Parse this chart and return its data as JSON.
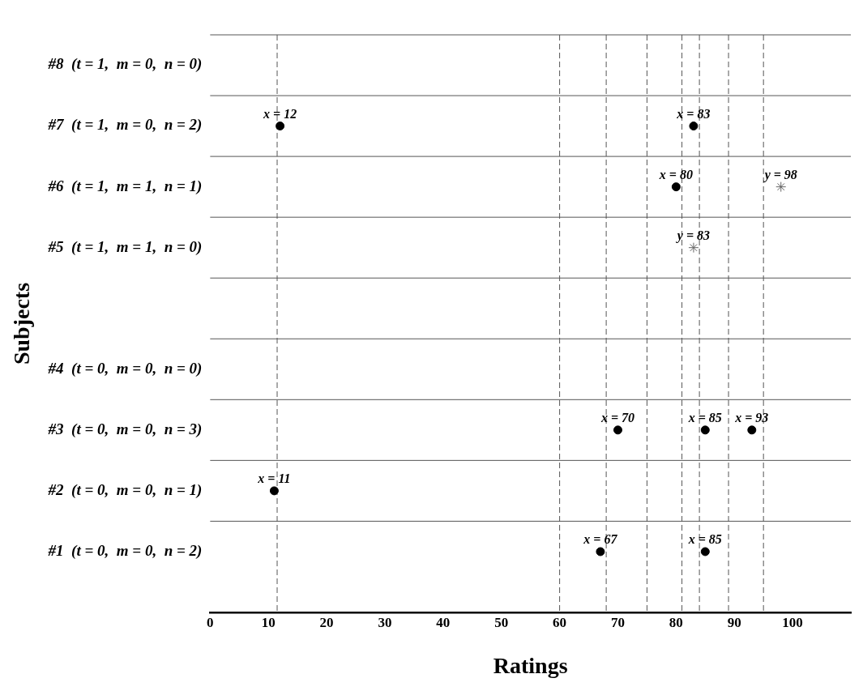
{
  "chart_data": {
    "type": "scatter",
    "orientation": "horizontal",
    "xlabel": "Ratings",
    "ylabel": "Subjects",
    "categories": [
      "#8  (t = 1,  m = 0,  n = 0)",
      "#7  (t = 1,  m = 0,  n = 2)",
      "#6  (t = 1,  m = 1,  n = 1)",
      "#5  (t = 1,  m = 1,  n = 0)",
      null,
      "#4  (t = 0,  m = 0,  n = 0)",
      "#3  (t = 0,  m = 0,  n = 3)",
      "#2  (t = 0,  m = 0,  n = 1)",
      "#1  (t = 0,  m = 0,  n = 2)"
    ],
    "series": [
      {
        "color": "#000000",
        "marker": "circle",
        "values": [
          null,
          12,
          80,
          null,
          null,
          null,
          70,
          11,
          67
        ],
        "value_labels": [
          null,
          "x = 12",
          "x = 80",
          null,
          null,
          null,
          "x = 70",
          "x = 11",
          "x = 67"
        ]
      },
      {
        "color": "#000000",
        "marker": "circle",
        "values": [
          null,
          83,
          null,
          null,
          null,
          null,
          85,
          null,
          85
        ],
        "value_labels": [
          null,
          "x = 83",
          null,
          null,
          null,
          null,
          "x = 85",
          null,
          "x = 85"
        ]
      },
      {
        "color": "#000000",
        "marker": "circle",
        "values": [
          null,
          null,
          null,
          null,
          null,
          null,
          93,
          null,
          null
        ],
        "value_labels": [
          null,
          null,
          null,
          null,
          null,
          null,
          "x = 93",
          null,
          null
        ]
      },
      {
        "color": "#666666",
        "marker": "cross",
        "values": [
          null,
          null,
          98,
          83,
          null,
          null,
          null,
          null,
          null
        ],
        "value_labels": [
          null,
          null,
          "y = 98",
          "y = 83",
          null,
          null,
          null,
          null,
          null
        ]
      }
    ],
    "xlim": [
      0,
      110
    ],
    "xticks": [
      0,
      10,
      20,
      30,
      40,
      50,
      60,
      70,
      80,
      90,
      100
    ],
    "grid": "y",
    "legend": false,
    "ref_lines": [
      {
        "axis": "x",
        "value": 11.5,
        "color": "#555555",
        "line_style": "dashed"
      },
      {
        "axis": "x",
        "value": 60,
        "color": "#555555",
        "line_style": "dashed"
      },
      {
        "axis": "x",
        "value": 68,
        "color": "#555555",
        "line_style": "dashed"
      },
      {
        "axis": "x",
        "value": 75,
        "color": "#555555",
        "line_style": "dashed"
      },
      {
        "axis": "x",
        "value": 81,
        "color": "#555555",
        "line_style": "dashed"
      },
      {
        "axis": "x",
        "value": 84,
        "color": "#555555",
        "line_style": "dashed"
      },
      {
        "axis": "x",
        "value": 89,
        "color": "#555555",
        "line_style": "dashed"
      },
      {
        "axis": "x",
        "value": 95,
        "color": "#555555",
        "line_style": "dashed"
      }
    ]
  }
}
